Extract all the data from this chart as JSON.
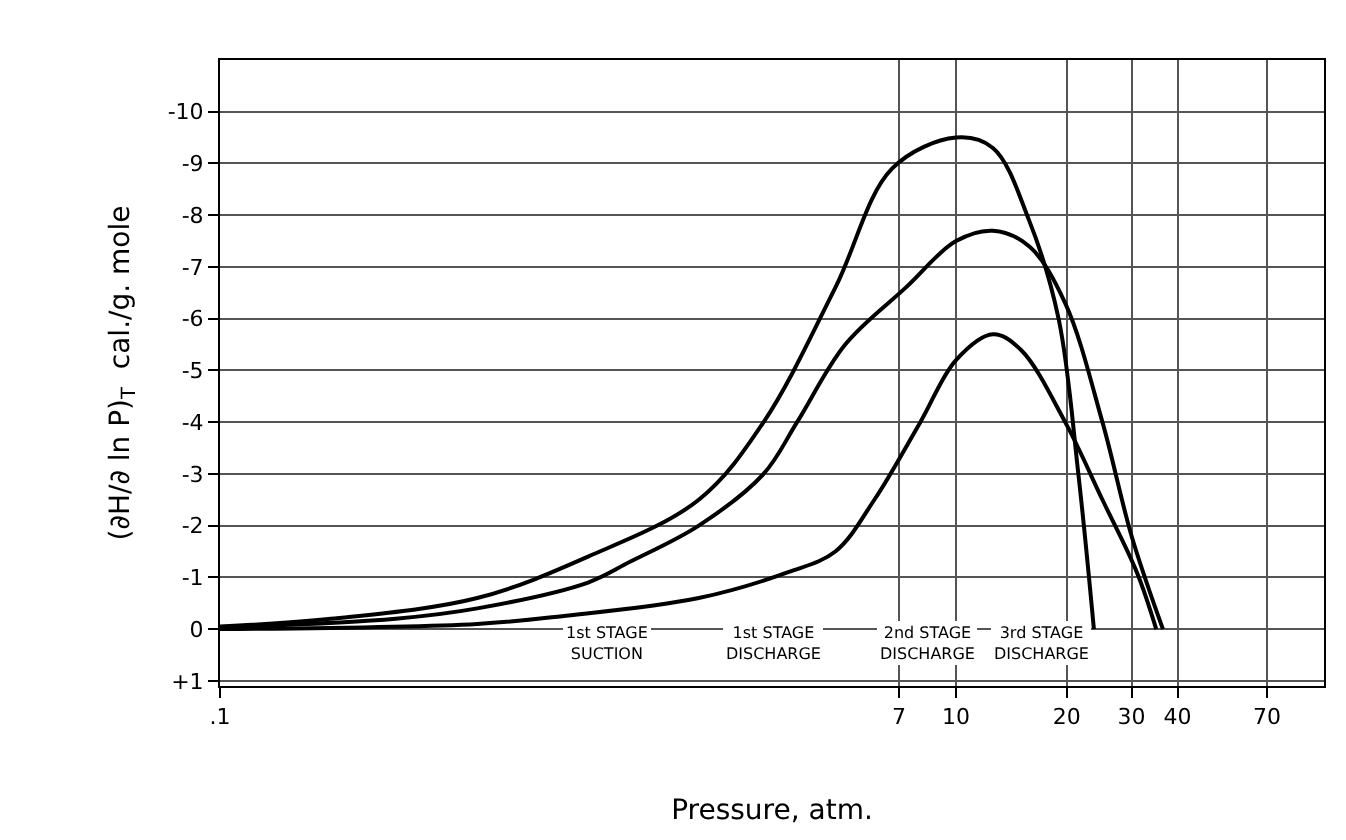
{
  "chart_data": {
    "type": "line",
    "xlabel": "Pressure, atm.",
    "ylabel": "(∂H/∂ ln P)$_{T}$  cal./g. mole",
    "log": "x",
    "grid": true,
    "marker": "none",
    "line_style": "solid",
    "xlim": [
      0.1,
      100
    ],
    "xticks": [
      {
        "value": 0.1,
        "label": ".1"
      },
      7,
      10,
      20,
      30,
      40,
      70
    ],
    "ylim": [
      1.1,
      -11
    ],
    "yticks": [
      {
        "value": 1,
        "label": "+1"
      },
      0,
      -1,
      -2,
      -3,
      -4,
      -5,
      -6,
      -7,
      -8,
      -9,
      -10
    ],
    "series": [
      {
        "color": "#000000",
        "x": [
          0.1,
          0.2,
          0.5,
          1,
          2,
          3,
          4.7,
          6.7,
          10,
          12.6,
          15.8,
          19,
          21.5,
          23.7
        ],
        "values": [
          -0.05,
          -0.2,
          -0.6,
          -1.4,
          -2.5,
          -4,
          -6.6,
          -8.9,
          -9.5,
          -9.3,
          -7.9,
          -6,
          -3,
          0
        ]
      },
      {
        "color": "#000000",
        "x": [
          0.1,
          0.3,
          0.5,
          1,
          1.3,
          2,
          3,
          3.7,
          5,
          7.3,
          10,
          12.6,
          15.8,
          19.8,
          25,
          30,
          36.5
        ],
        "values": [
          -0.03,
          -0.2,
          -0.4,
          -0.9,
          -1.3,
          -2,
          -3,
          -4,
          -5.5,
          -6.6,
          -7.5,
          -7.7,
          -7.4,
          -6.3,
          -4,
          -1.8,
          0
        ]
      },
      {
        "color": "#000000",
        "x": [
          0.1,
          0.5,
          0.85,
          2,
          3.5,
          4.7,
          6,
          8,
          10,
          12.6,
          15,
          19.8,
          25,
          31,
          35
        ],
        "values": [
          0,
          -0.1,
          -0.25,
          -0.6,
          -1.1,
          -1.5,
          -2.5,
          -4,
          -5.2,
          -5.7,
          -5.4,
          -4,
          -2.5,
          -1.1,
          0
        ]
      }
    ],
    "annotations": [
      "1st STAGE SUCTION",
      "1st STAGE DISCHARGE",
      "2nd STAGE DISCHARGE",
      "3rd STAGE DISCHARGE"
    ]
  }
}
